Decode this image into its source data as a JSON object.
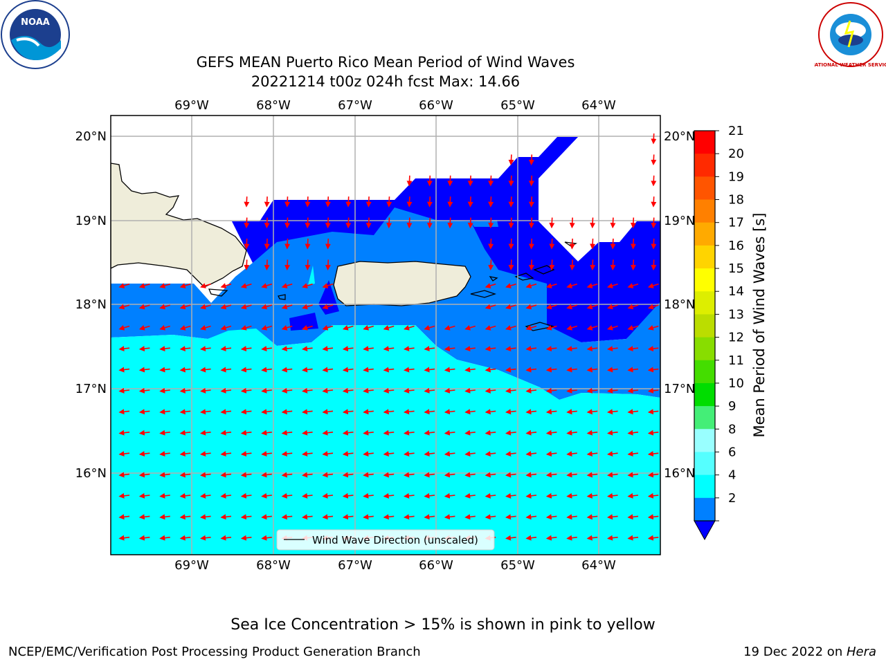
{
  "header": {
    "title_line1": "GEFS MEAN Puerto Rico Mean Period of Wind Waves",
    "title_line2": "20221214 t00z 024h fcst   Max: 14.66"
  },
  "logos": {
    "left": {
      "name": "noaa-logo",
      "text": "NOAA"
    },
    "right": {
      "name": "nws-logo",
      "text": "NATIONAL WEATHER SERVICE"
    }
  },
  "map": {
    "lon_labels": [
      "69°W",
      "68°W",
      "67°W",
      "66°W",
      "65°W",
      "64°W"
    ],
    "lat_labels": [
      "20°N",
      "19°N",
      "18°N",
      "17°N",
      "16°N"
    ],
    "legend_text": "Wind Wave Direction (unscaled)",
    "arrow_color": "#ff0000",
    "fill_colors": {
      "level_2_4": "#0080ff",
      "level_4_6": "#00ffff",
      "below_2": "#0000ff",
      "land": "#efedda"
    }
  },
  "colorbar": {
    "label": "Mean Period of Wind Waves [s]",
    "ticks": [
      "21",
      "20",
      "19",
      "18",
      "17",
      "16",
      "15",
      "14",
      "13",
      "12",
      "11",
      "10",
      "9",
      "8",
      "6",
      "4",
      "2"
    ],
    "colors": [
      "#ff0000",
      "#ff2a00",
      "#ff5500",
      "#ff8000",
      "#ffaa00",
      "#ffd400",
      "#ffff00",
      "#ddee00",
      "#bbdd00",
      "#88dd00",
      "#44dd00",
      "#00dd00",
      "#44ee77",
      "#99ffff",
      "#55ffff",
      "#00ffff",
      "#0080ff"
    ],
    "extend_color": "#0000ff"
  },
  "footer": {
    "sea_ice_note": "Sea Ice Concentration > 15% is shown in pink to yellow",
    "left": "NCEP/EMC/Verification Post Processing Product Generation Branch",
    "right_date": "19 Dec 2022 on ",
    "right_host": "Hera"
  }
}
